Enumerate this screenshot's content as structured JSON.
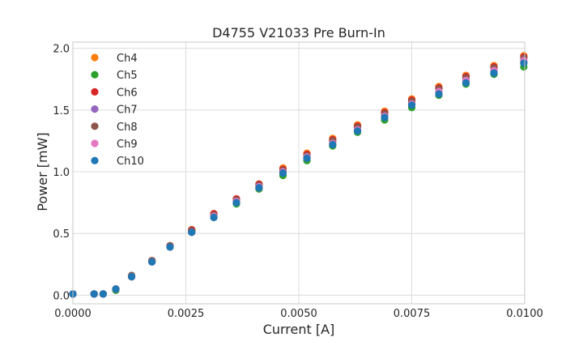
{
  "chart_data": {
    "type": "scatter",
    "title": "D4755 V21033 Pre Burn-In",
    "xlabel": "Current [A]",
    "ylabel": "Power [mW]",
    "xlim": [
      0.0,
      0.01
    ],
    "ylim": [
      -0.07,
      2.05
    ],
    "xticks": [
      0.0,
      0.0025,
      0.005,
      0.0075,
      0.01
    ],
    "xtick_labels": [
      "0.0000",
      "0.0025",
      "0.0050",
      "0.0075",
      "0.0100"
    ],
    "yticks": [
      0.0,
      0.5,
      1.0,
      1.5,
      2.0
    ],
    "ytick_labels": [
      "0.0",
      "0.5",
      "1.0",
      "1.5",
      "2.0"
    ],
    "grid": true,
    "legend_position": "upper-left",
    "x": [
      0.0,
      0.00047,
      0.00067,
      0.00095,
      0.0013,
      0.00175,
      0.00215,
      0.00263,
      0.00312,
      0.00362,
      0.00412,
      0.00465,
      0.00518,
      0.00575,
      0.0063,
      0.0069,
      0.0075,
      0.0081,
      0.0087,
      0.00932,
      0.00998
    ],
    "series": [
      {
        "name": "Ch4",
        "color": "#ff7f0e",
        "values": [
          0.01,
          0.01,
          0.01,
          0.05,
          0.15,
          0.27,
          0.4,
          0.53,
          0.66,
          0.78,
          0.9,
          1.03,
          1.15,
          1.27,
          1.38,
          1.49,
          1.59,
          1.69,
          1.78,
          1.86,
          1.94
        ]
      },
      {
        "name": "Ch5",
        "color": "#2ca02c",
        "values": [
          0.01,
          0.01,
          0.01,
          0.04,
          0.15,
          0.27,
          0.39,
          0.51,
          0.63,
          0.74,
          0.86,
          0.97,
          1.09,
          1.21,
          1.32,
          1.42,
          1.52,
          1.62,
          1.71,
          1.79,
          1.85
        ]
      },
      {
        "name": "Ch6",
        "color": "#d62728",
        "values": [
          0.01,
          0.01,
          0.01,
          0.05,
          0.15,
          0.28,
          0.4,
          0.53,
          0.66,
          0.78,
          0.9,
          1.02,
          1.14,
          1.26,
          1.37,
          1.48,
          1.58,
          1.68,
          1.77,
          1.85,
          1.93
        ]
      },
      {
        "name": "Ch7",
        "color": "#9467bd",
        "values": [
          0.01,
          0.01,
          0.01,
          0.05,
          0.15,
          0.27,
          0.39,
          0.51,
          0.63,
          0.75,
          0.87,
          0.99,
          1.11,
          1.23,
          1.34,
          1.45,
          1.55,
          1.64,
          1.73,
          1.81,
          1.89
        ]
      },
      {
        "name": "Ch8",
        "color": "#8c564b",
        "values": [
          0.01,
          0.01,
          0.01,
          0.05,
          0.16,
          0.28,
          0.4,
          0.52,
          0.65,
          0.77,
          0.89,
          1.01,
          1.13,
          1.25,
          1.36,
          1.47,
          1.57,
          1.67,
          1.76,
          1.84,
          1.92
        ]
      },
      {
        "name": "Ch9",
        "color": "#e377c2",
        "values": [
          0.01,
          0.01,
          0.01,
          0.05,
          0.15,
          0.27,
          0.39,
          0.51,
          0.64,
          0.76,
          0.88,
          1.0,
          1.12,
          1.23,
          1.34,
          1.45,
          1.55,
          1.65,
          1.74,
          1.82,
          1.9
        ]
      },
      {
        "name": "Ch10",
        "color": "#1f77b4",
        "values": [
          0.01,
          0.01,
          0.01,
          0.05,
          0.15,
          0.27,
          0.39,
          0.51,
          0.63,
          0.75,
          0.87,
          0.99,
          1.11,
          1.22,
          1.33,
          1.44,
          1.54,
          1.63,
          1.72,
          1.8,
          1.88
        ]
      }
    ]
  }
}
